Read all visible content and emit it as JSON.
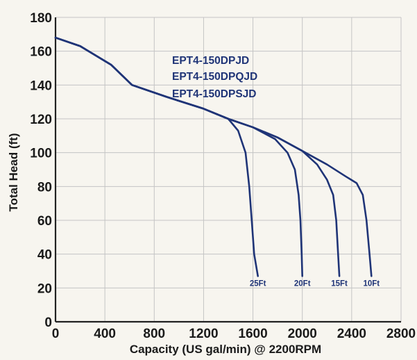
{
  "chart_data": {
    "type": "line",
    "title": "",
    "xlabel": "Capacity (US gal/min) @ 2200RPM",
    "ylabel": "Total Head (ft)",
    "xlim": [
      0,
      2800
    ],
    "ylim": [
      0,
      180
    ],
    "x_ticks": [
      0,
      400,
      800,
      1200,
      1600,
      2000,
      2400,
      2800
    ],
    "y_ticks": [
      0,
      20,
      40,
      60,
      80,
      100,
      120,
      140,
      160,
      180
    ],
    "grid": true,
    "model_labels": [
      "EPT4-150DPJD",
      "EPT4-150DPQJD",
      "EPT4-150DPSJD"
    ],
    "series": [
      {
        "name": "25Ft",
        "points": [
          [
            0,
            168
          ],
          [
            200,
            163
          ],
          [
            450,
            152
          ],
          [
            620,
            140
          ],
          [
            900,
            133
          ],
          [
            1200,
            126
          ],
          [
            1400,
            120
          ],
          [
            1480,
            113
          ],
          [
            1540,
            100
          ],
          [
            1570,
            80
          ],
          [
            1590,
            60
          ],
          [
            1610,
            40
          ],
          [
            1640,
            27
          ]
        ]
      },
      {
        "name": "20Ft",
        "points": [
          [
            0,
            168
          ],
          [
            200,
            163
          ],
          [
            450,
            152
          ],
          [
            620,
            140
          ],
          [
            900,
            133
          ],
          [
            1200,
            126
          ],
          [
            1400,
            120
          ],
          [
            1600,
            115
          ],
          [
            1780,
            108
          ],
          [
            1880,
            100
          ],
          [
            1940,
            90
          ],
          [
            1970,
            75
          ],
          [
            1985,
            60
          ],
          [
            1995,
            40
          ],
          [
            2000,
            27
          ]
        ]
      },
      {
        "name": "15Ft",
        "points": [
          [
            0,
            168
          ],
          [
            200,
            163
          ],
          [
            450,
            152
          ],
          [
            620,
            140
          ],
          [
            900,
            133
          ],
          [
            1200,
            126
          ],
          [
            1400,
            120
          ],
          [
            1600,
            115
          ],
          [
            1800,
            109
          ],
          [
            2000,
            101
          ],
          [
            2120,
            93
          ],
          [
            2200,
            84
          ],
          [
            2250,
            75
          ],
          [
            2275,
            60
          ],
          [
            2290,
            40
          ],
          [
            2300,
            27
          ]
        ]
      },
      {
        "name": "10Ft",
        "points": [
          [
            0,
            168
          ],
          [
            200,
            163
          ],
          [
            450,
            152
          ],
          [
            620,
            140
          ],
          [
            900,
            133
          ],
          [
            1200,
            126
          ],
          [
            1400,
            120
          ],
          [
            1600,
            115
          ],
          [
            1800,
            109
          ],
          [
            2000,
            101
          ],
          [
            2200,
            93
          ],
          [
            2350,
            86
          ],
          [
            2440,
            82
          ],
          [
            2490,
            75
          ],
          [
            2520,
            60
          ],
          [
            2545,
            40
          ],
          [
            2560,
            27
          ]
        ]
      }
    ],
    "colors": {
      "curve": "#1f3477",
      "grid": "#c4c4c4",
      "axis": "#222222"
    }
  }
}
